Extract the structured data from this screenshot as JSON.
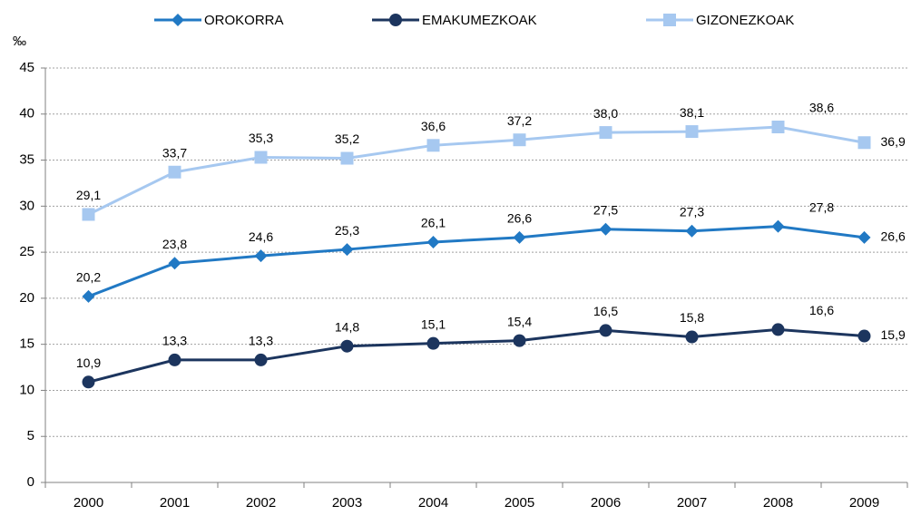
{
  "chart_data": {
    "type": "line",
    "y_label": "‰",
    "categories": [
      "2000",
      "2001",
      "2002",
      "2003",
      "2004",
      "2005",
      "2006",
      "2007",
      "2008",
      "2009"
    ],
    "series": [
      {
        "name": "OROKORRA",
        "color": "#2179c4",
        "marker": "diamond",
        "values": [
          20.2,
          23.8,
          24.6,
          25.3,
          26.1,
          26.6,
          27.5,
          27.3,
          27.8,
          26.6
        ],
        "value_labels": [
          "20,2",
          "23,8",
          "24,6",
          "25,3",
          "26,1",
          "26,6",
          "27,5",
          "27,3",
          "27,8",
          "26,6"
        ]
      },
      {
        "name": "EMAKUMEZKOAK",
        "color": "#1c355e",
        "marker": "circle",
        "values": [
          10.9,
          13.3,
          13.3,
          14.8,
          15.1,
          15.4,
          16.5,
          15.8,
          16.6,
          15.9
        ],
        "value_labels": [
          "10,9",
          "13,3",
          "13,3",
          "14,8",
          "15,1",
          "15,4",
          "16,5",
          "15,8",
          "16,6",
          "15,9"
        ]
      },
      {
        "name": "GIZONEZKOAK",
        "color": "#a6c8f0",
        "marker": "square",
        "values": [
          29.1,
          33.7,
          35.3,
          35.2,
          36.6,
          37.2,
          38.0,
          38.1,
          38.6,
          36.9
        ],
        "value_labels": [
          "29,1",
          "33,7",
          "35,3",
          "35,2",
          "36,6",
          "37,2",
          "38,0",
          "38,1",
          "38,6",
          "36,9"
        ]
      }
    ],
    "ylim": [
      0,
      45
    ],
    "yticks": [
      0,
      5,
      10,
      15,
      20,
      25,
      30,
      35,
      40,
      45
    ],
    "grid": true,
    "legend": "top"
  }
}
